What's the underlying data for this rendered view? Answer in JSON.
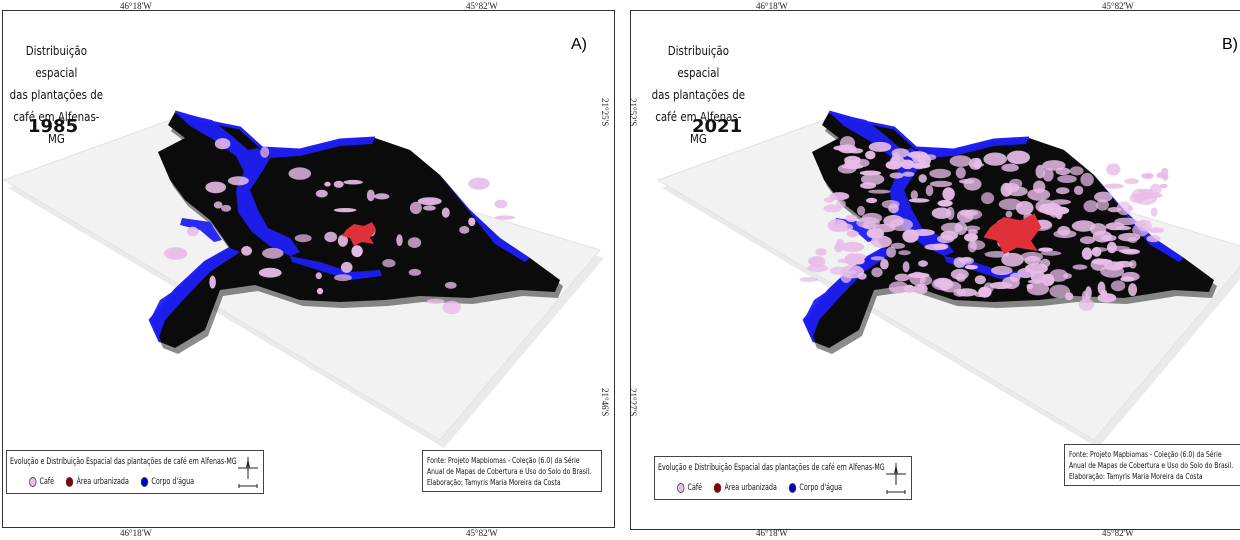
{
  "colors": {
    "territory": "#0b0b0b",
    "water": "#1f1ff5",
    "urban": "#e0303a",
    "coffee": "#e8bde8",
    "slab": "#f2f2f2"
  },
  "panels": [
    {
      "letter": "A)",
      "title_lines": [
        "Distribuição espacial",
        "das plantações de",
        "café em Alfenas-MG"
      ],
      "year": "1985",
      "coords": {
        "top_left": "46°18'W",
        "top_right": "45°82'W",
        "bottom_left": "46°18'W",
        "bottom_right": "45°82'W",
        "right_top": "21°25'S",
        "right_bottom": "21°46'S"
      },
      "legend": {
        "title": "Evolução e Distribuição Espacial das plantações de café em Alfenas-MG",
        "items": [
          {
            "label": "Café",
            "color": "#e8bde8"
          },
          {
            "label": "Área urbanizada",
            "color": "#8b0000"
          },
          {
            "label": "Corpo d'água",
            "color": "#0000cc"
          }
        ]
      },
      "source_lines": [
        "Fonte: Projeto Mapbiomas - Coleção (6.0) da Série",
        "Anual de Mapas de Cobertura e Uso do Solo do Brasil.",
        "Elaboração: Tamyris Maria Moreira da Costa"
      ]
    },
    {
      "letter": "B)",
      "title_lines": [
        "Distribuição espacial",
        "das plantações de",
        "café em Alfenas-MG"
      ],
      "year": "2021",
      "coords": {
        "top_left": "46°18'W",
        "top_right": "45°82'W",
        "bottom_left": "46°18'W",
        "bottom_right": "45°82'W",
        "left_top": "21°52'S",
        "left_bottom": "21°27'S"
      },
      "legend": {
        "title": "Evolução e Distribuição Espacial das plantações de café em Alfenas-MG",
        "items": [
          {
            "label": "Café",
            "color": "#e8bde8"
          },
          {
            "label": "Área urbanizada",
            "color": "#8b0000"
          },
          {
            "label": "Corpo d'água",
            "color": "#0000cc"
          }
        ]
      },
      "source_lines": [
        "Fonte: Projeto Mapbiomas - Coleção (6.0) da Série",
        "Anual de Mapas de Cobertura e Uso do Solo do Brasil.",
        "Elaboração: Tamyris Maria Moreira da Costa"
      ]
    }
  ]
}
